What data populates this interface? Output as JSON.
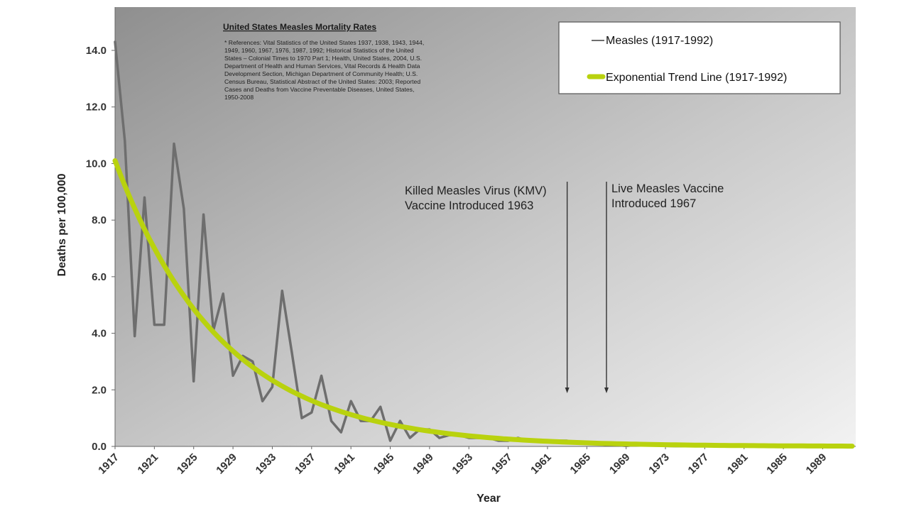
{
  "chart_data": {
    "type": "line",
    "title": "United States Measles Mortality Rates",
    "references": [
      "* References: Vital Statistics of the United States 1937, 1938, 1943, 1944,",
      "1949, 1960, 1967, 1976, 1987, 1992; Historical Statistics of the United",
      "States – Colonial Times to 1970 Part 1; Health, United States, 2004, U.S.",
      "Department of Health and Human Services, Vital Records & Health Data",
      "Development Section, Michigan Department of Community Health; U.S.",
      "Census Bureau, Statistical Abstract of the United States: 2003; Reported",
      "Cases and Deaths from Vaccine Preventable Diseases, United States,",
      "1950-2008"
    ],
    "xlabel": "Year",
    "ylabel": "Deaths per 100,000",
    "xlim": [
      1917,
      1992
    ],
    "ylim": [
      0,
      15.0
    ],
    "x_ticks": [
      "1917",
      "1921",
      "1925",
      "1929",
      "1933",
      "1937",
      "1941",
      "1945",
      "1949",
      "1953",
      "1957",
      "1961",
      "1965",
      "1969",
      "1973",
      "1977",
      "1981",
      "1985",
      "1989"
    ],
    "y_ticks": [
      "0.0",
      "2.0",
      "4.0",
      "6.0",
      "8.0",
      "10.0",
      "12.0",
      "14.0"
    ],
    "grid": false,
    "legend_position": "top-right",
    "series": [
      {
        "name": "Measles (1917-1992)",
        "color": "#6e6e6e",
        "x": [
          1917,
          1918,
          1919,
          1920,
          1921,
          1922,
          1923,
          1924,
          1925,
          1926,
          1927,
          1928,
          1929,
          1930,
          1931,
          1932,
          1933,
          1934,
          1935,
          1936,
          1937,
          1938,
          1939,
          1940,
          1941,
          1942,
          1943,
          1944,
          1945,
          1946,
          1947,
          1948,
          1949,
          1950,
          1951,
          1952,
          1953,
          1954,
          1955,
          1956,
          1957,
          1958,
          1959,
          1960,
          1961,
          1962,
          1963,
          1964,
          1965,
          1966,
          1967,
          1968,
          1969,
          1970,
          1971,
          1972,
          1973,
          1974,
          1975,
          1976,
          1977,
          1978,
          1979,
          1980,
          1981,
          1982,
          1983,
          1984,
          1985,
          1986,
          1987,
          1988,
          1989,
          1990,
          1991,
          1992
        ],
        "y": [
          14.3,
          10.8,
          3.9,
          8.8,
          4.3,
          4.3,
          10.7,
          8.4,
          2.3,
          8.2,
          4.1,
          5.4,
          2.5,
          3.2,
          3.0,
          1.6,
          2.1,
          5.5,
          3.3,
          1.0,
          1.2,
          2.5,
          0.9,
          0.5,
          1.6,
          0.9,
          0.9,
          1.4,
          0.2,
          0.9,
          0.3,
          0.6,
          0.6,
          0.3,
          0.4,
          0.4,
          0.3,
          0.3,
          0.3,
          0.2,
          0.2,
          0.3,
          0.2,
          0.2,
          0.2,
          0.2,
          0.2,
          0.1,
          0.1,
          0.1,
          0.05,
          0.05,
          0.02,
          0.05,
          0.05,
          0.05,
          0.02,
          0.01,
          0.01,
          0.01,
          0.01,
          0.01,
          0.01,
          0.01,
          0.01,
          0.01,
          0.01,
          0.01,
          0.01,
          0.01,
          0.01,
          0.01,
          0.01,
          0.03,
          0.01,
          0.01
        ]
      },
      {
        "name": "Exponential Trend Line (1917-1992)",
        "color": "#b9d20e",
        "trend": {
          "a": 10.1,
          "b": 0.0915,
          "x0": 1917
        }
      }
    ],
    "annotations": [
      {
        "lines": [
          "Killed Measles Virus (KMV)",
          "Vaccine Introduced 1963"
        ],
        "year": 1963
      },
      {
        "lines": [
          "Live Measles Vaccine",
          "Introduced 1967"
        ],
        "year": 1967
      }
    ]
  }
}
